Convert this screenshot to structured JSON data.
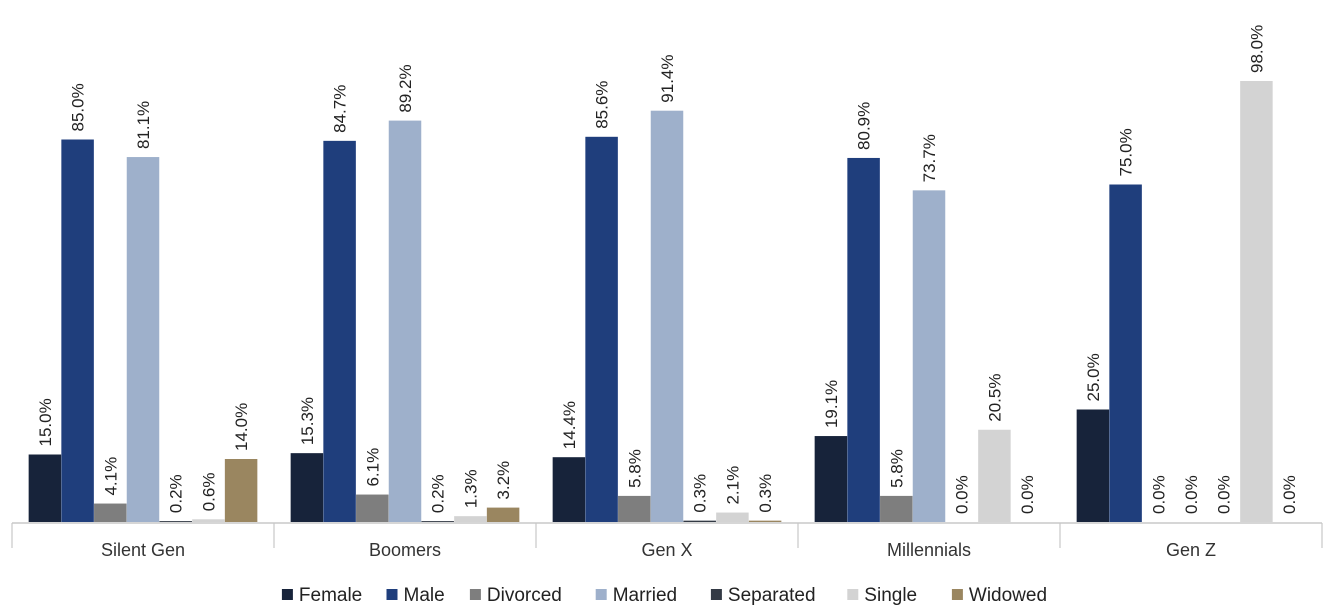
{
  "chart_data": {
    "type": "bar",
    "title": "",
    "xlabel": "",
    "ylabel": "",
    "ylim": [
      0,
      100
    ],
    "grid": false,
    "legend_position": "bottom",
    "categories": [
      "Silent Gen",
      "Boomers",
      "Gen X",
      "Millennials",
      "Gen Z"
    ],
    "series": [
      {
        "name": "Female",
        "color": "#17233a",
        "values": [
          15.0,
          15.3,
          14.4,
          19.1,
          25.0
        ],
        "labels": [
          "15.0%",
          "15.3%",
          "14.4%",
          "19.1%",
          "25.0%"
        ]
      },
      {
        "name": "Male",
        "color": "#1f3e7c",
        "values": [
          85.0,
          84.7,
          85.6,
          80.9,
          75.0
        ],
        "labels": [
          "85.0%",
          "84.7%",
          "85.6%",
          "80.9%",
          "75.0%"
        ]
      },
      {
        "name": "Divorced",
        "color": "#7e7e7e",
        "values": [
          4.1,
          6.1,
          5.8,
          5.8,
          0.0
        ],
        "labels": [
          "4.1%",
          "6.1%",
          "5.8%",
          "5.8%",
          "0.0%"
        ]
      },
      {
        "name": "Married",
        "color": "#9eb0cb",
        "values": [
          81.1,
          89.2,
          91.4,
          73.7,
          0.0
        ],
        "labels": [
          "81.1%",
          "89.2%",
          "91.4%",
          "73.7%",
          "0.0%"
        ]
      },
      {
        "name": "Separated",
        "color": "#333a45",
        "values": [
          0.2,
          0.2,
          0.3,
          0.0,
          0.0
        ],
        "labels": [
          "0.2%",
          "0.2%",
          "0.3%",
          "0.0%",
          "0.0%"
        ]
      },
      {
        "name": "Single",
        "color": "#d3d3d3",
        "values": [
          0.6,
          1.3,
          2.1,
          20.5,
          98.0
        ],
        "labels": [
          "0.6%",
          "1.3%",
          "2.1%",
          "20.5%",
          "98.0%"
        ]
      },
      {
        "name": "Widowed",
        "color": "#9a8660",
        "values": [
          14.0,
          3.2,
          0.3,
          0.0,
          0.0
        ],
        "labels": [
          "14.0%",
          "3.2%",
          "0.3%",
          "0.0%",
          "0.0%"
        ]
      }
    ]
  }
}
